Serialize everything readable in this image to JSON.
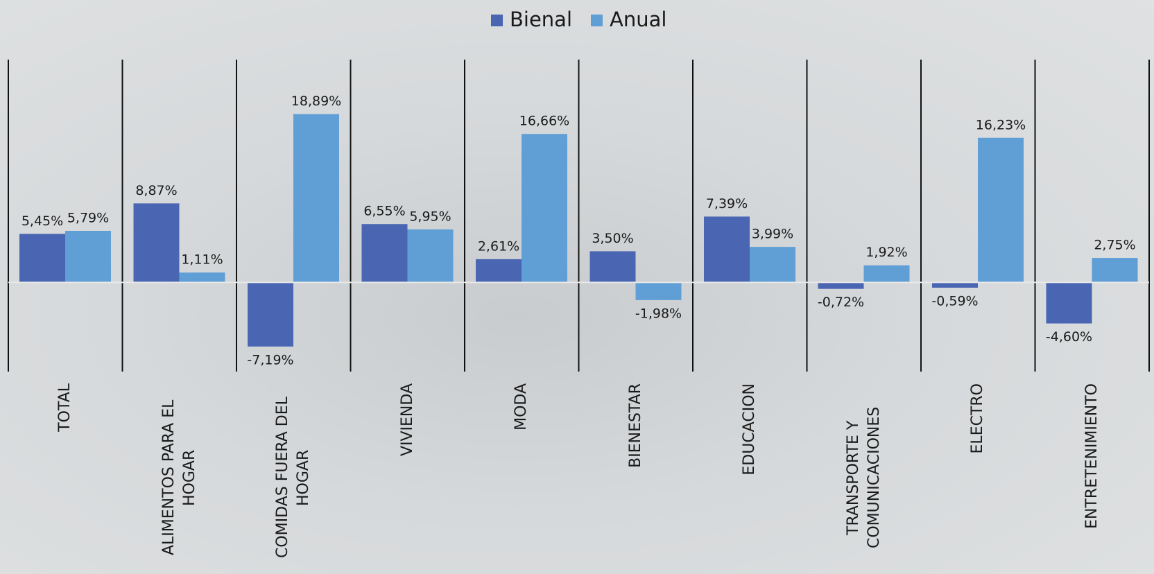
{
  "chart_data": {
    "type": "bar",
    "categories": [
      "TOTAL",
      "ALIMENTOS PARA EL HOGAR",
      "COMIDAS FUERA DEL HOGAR",
      "VIVIENDA",
      "MODA",
      "BIENESTAR",
      "EDUCACION",
      "TRANSPORTE Y COMUNICACIONES",
      "ELECTRO",
      "ENTRETENIMIENTO"
    ],
    "series": [
      {
        "name": "Bienal",
        "color": "#4a66b3",
        "values": [
          5.45,
          8.87,
          -7.19,
          6.55,
          2.61,
          3.5,
          7.39,
          -0.72,
          -0.59,
          -4.6
        ],
        "value_labels": [
          "5,45%",
          "8,87%",
          "-7,19%",
          "6,55%",
          "2,61%",
          "3,50%",
          "7,39%",
          "-0,72%",
          "-0,59%",
          "-4,60%"
        ]
      },
      {
        "name": "Anual",
        "color": "#5f9fd6",
        "values": [
          5.79,
          1.11,
          18.89,
          5.95,
          16.66,
          -1.98,
          3.99,
          1.92,
          16.23,
          2.75
        ],
        "value_labels": [
          "5,79%",
          "1,11%",
          "18,89%",
          "5,95%",
          "16,66%",
          "-1,98%",
          "3,99%",
          "1,92%",
          "16,23%",
          "2,75%"
        ]
      }
    ],
    "ylim": [
      -10,
      25
    ],
    "legend": "top"
  }
}
